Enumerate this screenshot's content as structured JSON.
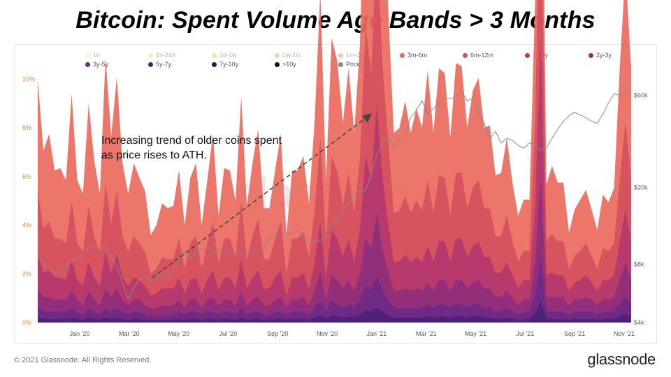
{
  "title": "Bitcoin: Spent Volume Age Bands > 3 Months",
  "annotation": {
    "line1": "Increasing trend of older coins spent",
    "line2": "as price rises to ATH."
  },
  "watermark": "glassnode",
  "footer": {
    "copyright": "© 2021 Glassnode. All Rights Reserved.",
    "brand": "glassnode"
  },
  "chart_data": {
    "type": "area",
    "legend": [
      {
        "name": "1h",
        "color": "#f5ea8e"
      },
      {
        "name": "1h-24h",
        "color": "#f2d66e"
      },
      {
        "name": "1d-1w",
        "color": "#f1c232"
      },
      {
        "name": "1w-1m",
        "color": "#f0a03a"
      },
      {
        "name": "1m-3m",
        "color": "#ee8a52"
      },
      {
        "name": "3m-6m",
        "color": "#e96a5c"
      },
      {
        "name": "6m-12m",
        "color": "#d4505e"
      },
      {
        "name": "1y-2y",
        "color": "#b33a6e"
      },
      {
        "name": "2y-3y",
        "color": "#8e2f7c"
      },
      {
        "name": "3y-5y",
        "color": "#6b2a86"
      },
      {
        "name": "5y-7y",
        "color": "#4a2279"
      },
      {
        "name": "7y-10y",
        "color": "#2a1a4a"
      },
      {
        "name": ">10y",
        "color": "#111111"
      },
      {
        "name": "Price [USD]",
        "color": "#8a8a8a"
      }
    ],
    "x_ticks": [
      "Jan '20",
      "Mar '20",
      "May '20",
      "Jul '20",
      "Sep '20",
      "Nov '20",
      "Jan '21",
      "Mar '21",
      "May '21",
      "Jul '21",
      "Sep '21",
      "Nov '21"
    ],
    "y_left_ticks": [
      "0%",
      "2%",
      "4%",
      "6%",
      "8%",
      "10%"
    ],
    "y_left_range": [
      0,
      10
    ],
    "y_right_ticks": [
      "$4k",
      "$8k",
      "$20k",
      "$60k"
    ],
    "y_right_scale": "log",
    "y_right_range": [
      4000,
      70000
    ],
    "series": [
      {
        "name": "3m-6m",
        "color": "#e96a5c",
        "values": [
          4.6,
          3.2,
          3.6,
          2.8,
          2.9,
          2.6,
          4.4,
          2.6,
          2.4,
          4.2,
          3.1,
          2.4,
          5.2,
          3.6,
          4.7,
          3.0,
          2.4,
          3.0,
          2.7,
          2.5,
          1.6,
          1.8,
          2.2,
          2.1,
          2.2,
          2.8,
          1.8,
          2.7,
          3.0,
          1.8,
          2.6,
          3.6,
          2.0,
          2.9,
          2.8,
          2.3,
          4.3,
          2.2,
          3.0,
          3.7,
          2.1,
          2.1,
          2.8,
          3.6,
          1.6,
          2.8,
          2.8,
          3.1,
          2.2,
          3.7,
          6.0,
          2.5,
          4.9,
          4.5,
          3.4,
          4.3,
          3.3,
          4.7,
          7.6,
          6.5,
          9.8,
          6.8,
          5.5,
          3.3,
          3.4,
          3.9,
          3.3,
          3.8,
          3.4,
          4.5,
          3.3,
          4.4,
          4.3,
          3.2,
          4.5,
          4.4,
          3.3,
          4.0,
          4.2,
          3.3,
          3.4,
          2.5,
          2.6,
          3.2,
          2.4,
          1.9,
          2.1,
          2.1,
          4.9,
          8.0,
          2.3,
          2.8,
          2.4,
          2.4,
          1.5,
          1.9,
          2.1,
          2.2,
          1.9,
          1.6,
          2.2,
          2.0,
          2.3,
          4.6,
          6.2,
          4.5
        ]
      },
      {
        "name": "6m-12m",
        "color": "#d4505e",
        "values": [
          2.6,
          1.8,
          2.0,
          1.6,
          1.6,
          1.5,
          2.4,
          1.5,
          1.4,
          2.3,
          1.7,
          1.4,
          2.8,
          2.0,
          2.6,
          1.7,
          1.4,
          1.7,
          1.5,
          1.4,
          0.9,
          1.0,
          1.3,
          1.2,
          1.2,
          1.6,
          1.0,
          1.5,
          1.7,
          1.0,
          1.5,
          2.0,
          1.1,
          1.6,
          1.6,
          1.3,
          2.4,
          1.2,
          1.7,
          2.1,
          1.2,
          1.2,
          1.6,
          2.0,
          0.9,
          1.6,
          1.6,
          1.7,
          1.3,
          2.1,
          3.5,
          1.5,
          3.0,
          2.8,
          2.1,
          2.7,
          2.0,
          2.9,
          5.2,
          4.4,
          6.8,
          4.6,
          3.4,
          2.0,
          2.1,
          2.4,
          2.0,
          2.3,
          2.1,
          2.7,
          2.0,
          2.7,
          2.6,
          1.9,
          2.7,
          2.7,
          2.0,
          2.4,
          2.5,
          2.0,
          2.0,
          1.5,
          1.5,
          1.9,
          1.4,
          1.1,
          1.2,
          1.2,
          3.5,
          6.8,
          1.4,
          1.6,
          1.4,
          1.4,
          0.9,
          1.1,
          1.2,
          1.3,
          1.1,
          0.9,
          1.3,
          1.2,
          1.3,
          2.6,
          3.6,
          2.6
        ]
      },
      {
        "name": "1y-2y",
        "color": "#b33a6e",
        "values": [
          1.4,
          1.0,
          1.1,
          0.9,
          0.9,
          0.8,
          1.3,
          0.8,
          0.8,
          1.2,
          0.9,
          0.8,
          1.5,
          1.0,
          1.4,
          0.9,
          0.8,
          0.9,
          0.8,
          0.8,
          0.5,
          0.6,
          0.7,
          0.7,
          0.7,
          0.9,
          0.6,
          0.8,
          0.9,
          0.6,
          0.8,
          1.1,
          0.6,
          0.9,
          0.9,
          0.7,
          1.3,
          0.7,
          0.9,
          1.1,
          0.7,
          0.7,
          0.9,
          1.1,
          0.5,
          0.9,
          0.9,
          1.0,
          0.7,
          1.2,
          2.0,
          0.9,
          1.8,
          1.7,
          1.3,
          1.7,
          1.2,
          1.8,
          3.4,
          2.8,
          4.5,
          2.9,
          2.0,
          1.2,
          1.2,
          1.4,
          1.2,
          1.3,
          1.2,
          1.5,
          1.2,
          1.6,
          1.6,
          1.2,
          1.7,
          1.7,
          1.3,
          1.5,
          1.6,
          1.3,
          1.3,
          1.0,
          1.0,
          1.2,
          0.9,
          0.7,
          0.8,
          0.8,
          2.3,
          5.6,
          0.9,
          1.0,
          0.9,
          0.9,
          0.6,
          0.7,
          0.8,
          0.9,
          0.7,
          0.6,
          0.8,
          0.8,
          0.9,
          1.6,
          2.2,
          1.6
        ]
      },
      {
        "name": "2y-3y",
        "color": "#8e2f7c",
        "values": [
          0.8,
          0.6,
          0.6,
          0.5,
          0.5,
          0.5,
          0.7,
          0.5,
          0.4,
          0.7,
          0.5,
          0.4,
          0.8,
          0.6,
          0.8,
          0.5,
          0.4,
          0.5,
          0.5,
          0.4,
          0.3,
          0.3,
          0.4,
          0.4,
          0.4,
          0.5,
          0.3,
          0.5,
          0.5,
          0.3,
          0.5,
          0.6,
          0.4,
          0.5,
          0.5,
          0.4,
          0.7,
          0.4,
          0.5,
          0.6,
          0.4,
          0.4,
          0.5,
          0.6,
          0.3,
          0.5,
          0.5,
          0.6,
          0.4,
          0.7,
          1.2,
          0.5,
          1.1,
          1.0,
          0.8,
          1.0,
          0.7,
          1.1,
          2.0,
          1.7,
          2.6,
          1.7,
          1.2,
          0.7,
          0.7,
          0.8,
          0.7,
          0.8,
          0.7,
          0.9,
          0.7,
          1.0,
          1.0,
          0.7,
          1.0,
          1.0,
          0.8,
          0.9,
          1.0,
          0.8,
          0.8,
          0.6,
          0.6,
          0.7,
          0.6,
          0.4,
          0.5,
          0.5,
          1.4,
          3.4,
          0.6,
          0.6,
          0.6,
          0.6,
          0.4,
          0.5,
          0.5,
          0.6,
          0.5,
          0.4,
          0.5,
          0.5,
          0.6,
          1.0,
          1.4,
          1.0
        ]
      },
      {
        "name": "3y-5y",
        "color": "#6b2a86",
        "values": [
          0.4,
          0.3,
          0.3,
          0.3,
          0.3,
          0.3,
          0.4,
          0.3,
          0.2,
          0.4,
          0.3,
          0.2,
          0.4,
          0.3,
          0.4,
          0.3,
          0.2,
          0.3,
          0.3,
          0.2,
          0.2,
          0.2,
          0.2,
          0.2,
          0.2,
          0.3,
          0.2,
          0.3,
          0.3,
          0.2,
          0.3,
          0.3,
          0.2,
          0.3,
          0.3,
          0.2,
          0.4,
          0.2,
          0.3,
          0.3,
          0.2,
          0.2,
          0.3,
          0.3,
          0.2,
          0.3,
          0.3,
          0.3,
          0.2,
          0.4,
          0.6,
          0.3,
          0.6,
          0.5,
          0.4,
          0.5,
          0.4,
          0.6,
          1.0,
          0.9,
          1.3,
          0.9,
          0.6,
          0.4,
          0.4,
          0.4,
          0.4,
          0.4,
          0.4,
          0.5,
          0.4,
          0.5,
          0.5,
          0.4,
          0.5,
          0.5,
          0.4,
          0.5,
          0.5,
          0.4,
          0.4,
          0.3,
          0.3,
          0.4,
          0.3,
          0.2,
          0.3,
          0.3,
          0.7,
          1.8,
          0.3,
          0.3,
          0.3,
          0.3,
          0.2,
          0.3,
          0.3,
          0.3,
          0.3,
          0.2,
          0.3,
          0.3,
          0.3,
          0.5,
          0.7,
          0.5
        ]
      },
      {
        "name": "5y-7y",
        "color": "#4a2279",
        "values": [
          0.2,
          0.15,
          0.15,
          0.15,
          0.15,
          0.15,
          0.2,
          0.15,
          0.1,
          0.2,
          0.15,
          0.1,
          0.2,
          0.15,
          0.2,
          0.15,
          0.1,
          0.15,
          0.15,
          0.1,
          0.1,
          0.1,
          0.1,
          0.1,
          0.1,
          0.15,
          0.1,
          0.15,
          0.15,
          0.1,
          0.15,
          0.15,
          0.1,
          0.15,
          0.15,
          0.1,
          0.2,
          0.1,
          0.15,
          0.15,
          0.1,
          0.1,
          0.15,
          0.15,
          0.1,
          0.15,
          0.15,
          0.15,
          0.1,
          0.2,
          0.3,
          0.15,
          0.3,
          0.25,
          0.2,
          0.25,
          0.2,
          0.3,
          0.5,
          0.45,
          0.6,
          0.45,
          0.3,
          0.2,
          0.2,
          0.2,
          0.2,
          0.2,
          0.2,
          0.25,
          0.2,
          0.25,
          0.25,
          0.2,
          0.25,
          0.25,
          0.2,
          0.25,
          0.25,
          0.2,
          0.2,
          0.15,
          0.15,
          0.2,
          0.15,
          0.1,
          0.15,
          0.15,
          0.35,
          0.9,
          0.15,
          0.15,
          0.15,
          0.15,
          0.1,
          0.15,
          0.15,
          0.15,
          0.15,
          0.1,
          0.15,
          0.15,
          0.15,
          0.25,
          0.35,
          0.25
        ]
      }
    ],
    "price_usd": [
      8900,
      8100,
      7600,
      7200,
      7300,
      7900,
      8300,
      8500,
      9100,
      9700,
      10100,
      9600,
      9800,
      8800,
      7900,
      6400,
      5300,
      6100,
      6700,
      6900,
      6600,
      7000,
      7200,
      6900,
      7400,
      8800,
      9300,
      8700,
      9100,
      9600,
      9800,
      9200,
      9500,
      9400,
      9100,
      9300,
      9200,
      9100,
      9200,
      9400,
      9600,
      10900,
      11600,
      11800,
      11400,
      11700,
      11900,
      11200,
      10300,
      10500,
      10600,
      11500,
      13000,
      13500,
      15600,
      16500,
      18400,
      19100,
      19300,
      23500,
      29300,
      34000,
      36800,
      32500,
      35500,
      38100,
      46000,
      50000,
      56200,
      48000,
      51000,
      55000,
      58000,
      57500,
      59000,
      63000,
      56000,
      58000,
      49000,
      43000,
      36000,
      39000,
      34000,
      36000,
      35000,
      33000,
      32000,
      34000,
      33000,
      31000,
      32000,
      36000,
      40000,
      44000,
      47000,
      49000,
      47500,
      46000,
      44000,
      43000,
      48000,
      55000,
      61000,
      60000,
      63000,
      64000
    ]
  }
}
